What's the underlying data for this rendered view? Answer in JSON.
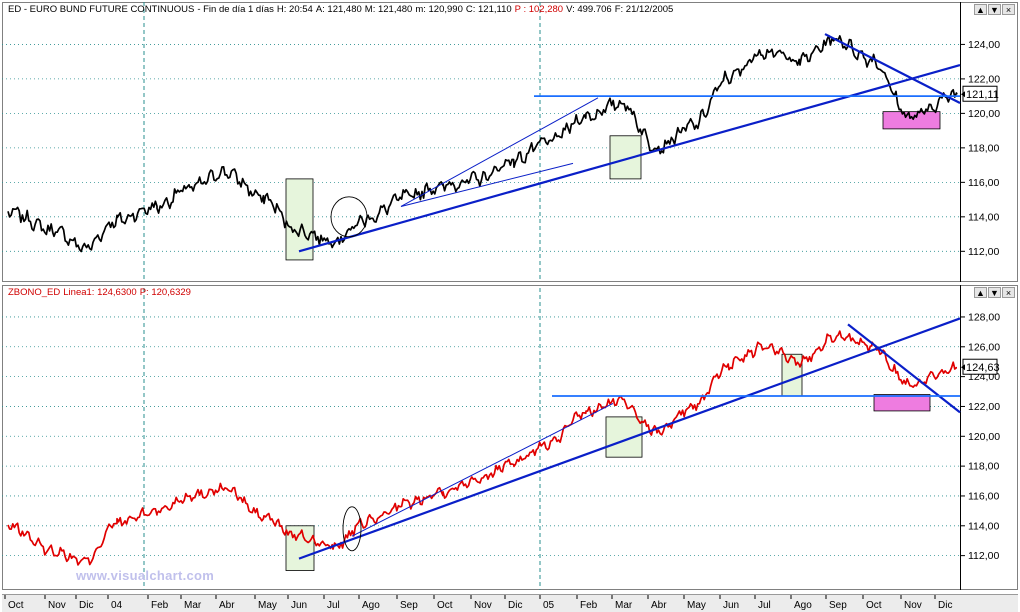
{
  "top": {
    "header": {
      "symbol": "ED - EURO BUND FUTURE CONTINUOUS",
      "timeframe": "- Fin de día 1 días",
      "hour": "H: 20:54",
      "open": "A: 121,480",
      "max": "M: 121,480",
      "min": "m: 120,990",
      "close": "C: 121,110",
      "p": "P : 102,280",
      "volume": "V: 499.706",
      "date": "F: 21/12/2005"
    },
    "price_tag": "121,11"
  },
  "bottom": {
    "header": {
      "symbol": "ZBONO_ED",
      "line": "Linea1: 124,6300",
      "p": "P: 120,6329"
    },
    "price_tag": "124,63"
  },
  "watermark": "www.visualchart.com",
  "window_buttons": [
    "▲",
    "▼",
    "×"
  ],
  "colors": {
    "bund_line": "#000000",
    "bono_line": "#e00000",
    "trendline": "#0a1fc8",
    "support_line": "#1a6eff",
    "green_box": "#e6f5dc",
    "pink_box": "#ee7ce0",
    "vertical_separator": "#2a8f8f",
    "grid": "#2a8f8f"
  },
  "chart_data": [
    {
      "type": "line",
      "name": "top",
      "y_ticks": [
        "112,00",
        "114,00",
        "116,00",
        "118,00",
        "120,00",
        "122,00",
        "124,00"
      ],
      "ylim": [
        110.8,
        125.3
      ],
      "x": [
        "Oct",
        "Nov",
        "Dic",
        "04",
        "Feb",
        "Mar",
        "Abr",
        "May",
        "Jun",
        "Jul",
        "Ago",
        "Sep",
        "Oct",
        "Nov",
        "Dic",
        "05",
        "Feb",
        "Mar",
        "Abr",
        "May",
        "Jun",
        "Jul",
        "Ago",
        "Sep",
        "Oct",
        "Nov",
        "Dic"
      ],
      "series": [
        {
          "values": [
            114.3,
            113.2,
            112.2,
            113.8,
            114.6,
            115.7,
            116.6,
            115.1,
            113.2,
            112.6,
            113.9,
            115.2,
            115.8,
            116.2,
            117.3,
            118.4,
            119.8,
            120.6,
            118.0,
            119.3,
            122.1,
            123.6,
            123.1,
            124.3,
            123.1,
            119.8,
            121.1
          ]
        }
      ],
      "last_value": 121.11
    },
    {
      "type": "line",
      "name": "bottom",
      "y_ticks": [
        "112,00",
        "114,00",
        "116,00",
        "118,00",
        "120,00",
        "122,00",
        "124,00",
        "126,00",
        "128,00"
      ],
      "ylim": [
        110.5,
        128.6
      ],
      "x": [
        "Oct",
        "Nov",
        "Dic",
        "04",
        "Feb",
        "Mar",
        "Abr",
        "May",
        "Jun",
        "Jul",
        "Ago",
        "Sep",
        "Oct",
        "Nov",
        "Dic",
        "05",
        "Feb",
        "Mar",
        "Abr",
        "May",
        "Jun",
        "Jul",
        "Ago",
        "Sep",
        "Oct",
        "Nov",
        "Dic"
      ],
      "series": [
        {
          "values": [
            114.0,
            112.3,
            111.6,
            114.2,
            115.0,
            116.0,
            116.5,
            114.6,
            113.3,
            112.6,
            114.3,
            115.5,
            116.3,
            117.2,
            118.3,
            119.5,
            121.6,
            122.4,
            120.3,
            122.0,
            124.8,
            126.0,
            125.0,
            126.7,
            126.0,
            123.5,
            124.6
          ]
        }
      ],
      "last_value": 124.63
    }
  ]
}
